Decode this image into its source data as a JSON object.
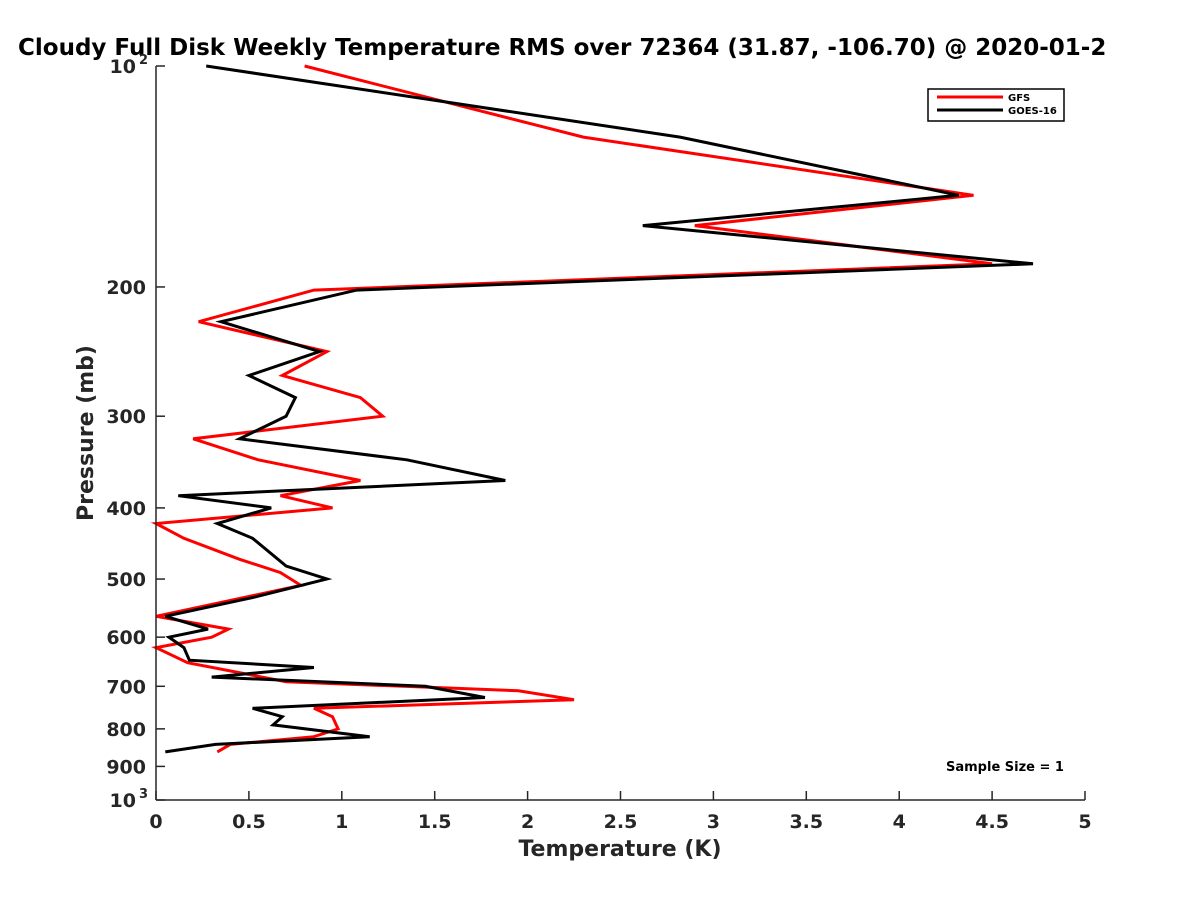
{
  "chart_data": {
    "type": "line",
    "title": "Cloudy Full Disk Weekly Temperature RMS over 72364 (31.87, -106.70) @ 2020-01-2",
    "xlabel": "Temperature (K)",
    "ylabel": "Pressure (mb)",
    "xlim": [
      0,
      5
    ],
    "ylim": [
      100,
      1000
    ],
    "y_scale": "log",
    "y_reversed": true,
    "grid": false,
    "legend_position": "top-right",
    "x_ticks": [
      0,
      0.5,
      1,
      1.5,
      2,
      2.5,
      3,
      3.5,
      4,
      4.5,
      5
    ],
    "x_tick_labels": [
      "0",
      "0.5",
      "1",
      "1.5",
      "2",
      "2.5",
      "3",
      "3.5",
      "4",
      "4.5",
      "5"
    ],
    "y_ticks": [
      100,
      200,
      300,
      400,
      500,
      600,
      700,
      800,
      900,
      1000
    ],
    "y_tick_labels": [
      {
        "base": "10",
        "exp": "2"
      },
      {
        "base": "200",
        "exp": ""
      },
      {
        "base": "300",
        "exp": ""
      },
      {
        "base": "400",
        "exp": ""
      },
      {
        "base": "500",
        "exp": ""
      },
      {
        "base": "600",
        "exp": ""
      },
      {
        "base": "700",
        "exp": ""
      },
      {
        "base": "800",
        "exp": ""
      },
      {
        "base": "900",
        "exp": ""
      },
      {
        "base": "10",
        "exp": "3"
      }
    ],
    "annotation": "Sample Size = 1",
    "series": [
      {
        "name": "GFS",
        "color": "#ff0000",
        "points": [
          [
            0.8,
            100
          ],
          [
            2.3,
            125
          ],
          [
            4.4,
            150
          ],
          [
            2.9,
            165
          ],
          [
            4.5,
            186
          ],
          [
            0.85,
            202
          ],
          [
            0.23,
            223
          ],
          [
            0.92,
            245
          ],
          [
            0.68,
            264
          ],
          [
            1.1,
            283
          ],
          [
            1.22,
            300
          ],
          [
            0.2,
            322
          ],
          [
            0.55,
            344
          ],
          [
            1.1,
            367
          ],
          [
            0.67,
            385
          ],
          [
            0.95,
            400
          ],
          [
            0.0,
            420
          ],
          [
            0.15,
            440
          ],
          [
            0.45,
            470
          ],
          [
            0.67,
            490
          ],
          [
            0.78,
            510
          ],
          [
            0.0,
            562
          ],
          [
            0.39,
            585
          ],
          [
            0.3,
            600
          ],
          [
            0.0,
            620
          ],
          [
            0.17,
            650
          ],
          [
            0.7,
            690
          ],
          [
            1.95,
            710
          ],
          [
            2.25,
            730
          ],
          [
            0.85,
            750
          ],
          [
            0.95,
            770
          ],
          [
            0.98,
            800
          ],
          [
            0.85,
            820
          ],
          [
            0.4,
            840
          ],
          [
            0.33,
            860
          ]
        ]
      },
      {
        "name": "GOES-16",
        "color": "#000000",
        "points": [
          [
            0.27,
            100
          ],
          [
            2.82,
            125
          ],
          [
            4.32,
            150
          ],
          [
            2.62,
            165
          ],
          [
            4.72,
            186
          ],
          [
            1.08,
            202
          ],
          [
            0.35,
            223
          ],
          [
            0.88,
            245
          ],
          [
            0.5,
            264
          ],
          [
            0.75,
            283
          ],
          [
            0.7,
            300
          ],
          [
            0.45,
            322
          ],
          [
            1.35,
            344
          ],
          [
            1.88,
            367
          ],
          [
            0.12,
            385
          ],
          [
            0.62,
            400
          ],
          [
            0.33,
            420
          ],
          [
            0.52,
            440
          ],
          [
            0.7,
            480
          ],
          [
            0.92,
            500
          ],
          [
            0.52,
            530
          ],
          [
            0.05,
            562
          ],
          [
            0.28,
            585
          ],
          [
            0.07,
            600
          ],
          [
            0.15,
            620
          ],
          [
            0.18,
            645
          ],
          [
            0.85,
            660
          ],
          [
            0.3,
            680
          ],
          [
            1.45,
            700
          ],
          [
            1.77,
            725
          ],
          [
            0.52,
            750
          ],
          [
            0.68,
            770
          ],
          [
            0.63,
            790
          ],
          [
            1.15,
            820
          ],
          [
            0.32,
            840
          ],
          [
            0.05,
            860
          ]
        ]
      }
    ]
  }
}
